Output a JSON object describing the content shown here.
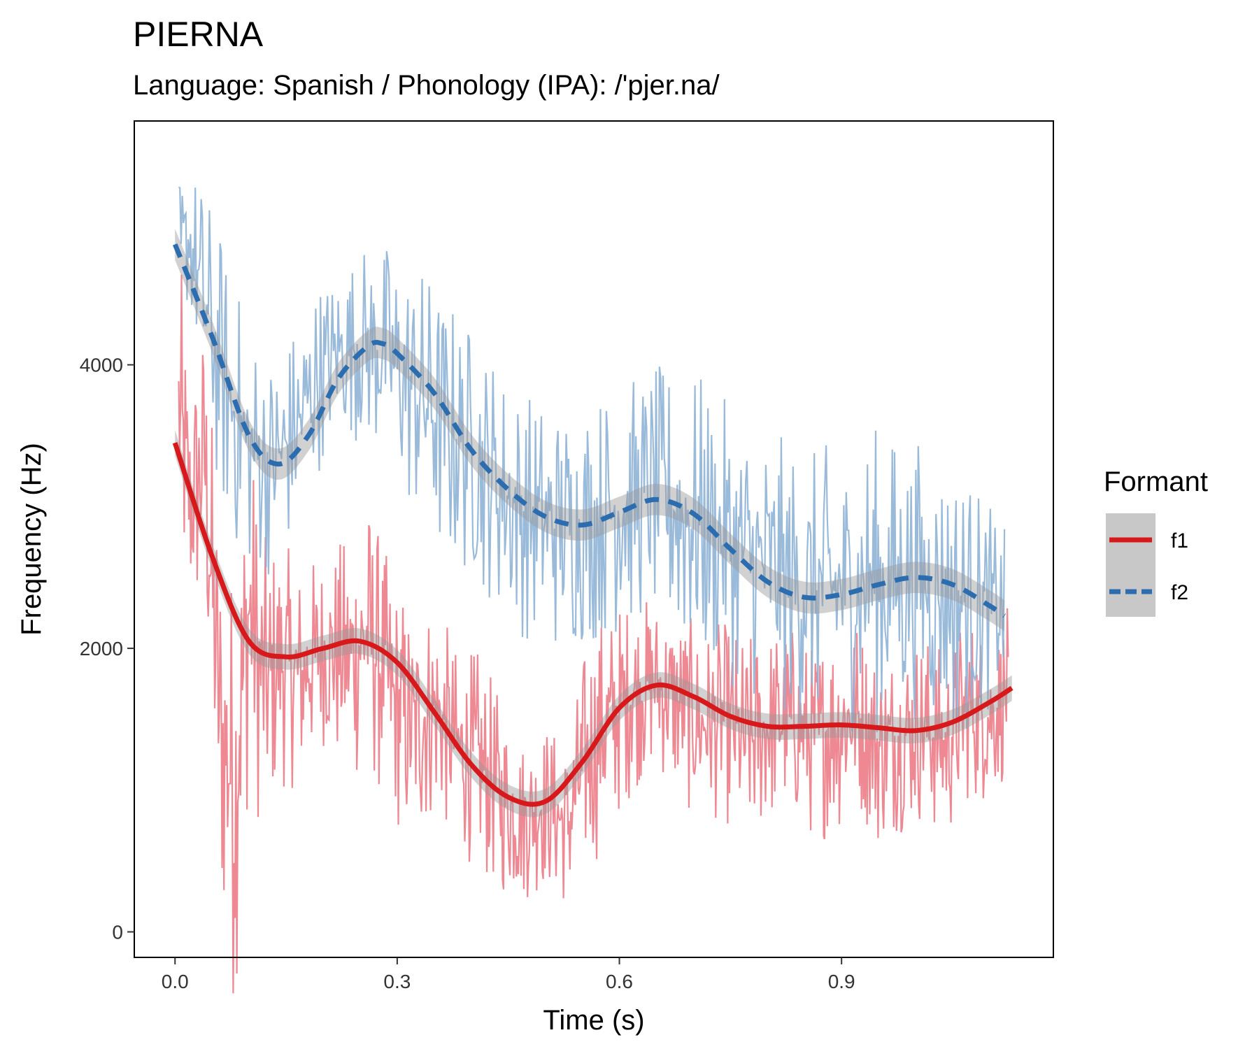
{
  "chart_data": {
    "type": "line",
    "title": "PIERNA",
    "subtitle": "Language: Spanish / Phonology (IPA): /'pjer.na/",
    "xlabel": "Time (s)",
    "ylabel": "Frequency (Hz)",
    "xlim": [
      -0.055,
      1.186
    ],
    "ylim": [
      -180,
      5720
    ],
    "x_ticks": [
      0.0,
      0.3,
      0.6,
      0.9
    ],
    "x_tick_labels": [
      "0.0",
      "0.3",
      "0.6",
      "0.9"
    ],
    "y_ticks": [
      0,
      2000,
      4000
    ],
    "y_tick_labels": [
      "0",
      "2000",
      "4000"
    ],
    "grid": false,
    "legend": {
      "title": "Formant",
      "position": "right"
    },
    "series": [
      {
        "name": "f1",
        "color": "#d7191c",
        "raw_color": "#ec7b86",
        "linestyle": "solid",
        "smooth": {
          "x": [
            0.0,
            0.05,
            0.1,
            0.15,
            0.2,
            0.25,
            0.3,
            0.35,
            0.4,
            0.45,
            0.5,
            0.55,
            0.6,
            0.65,
            0.7,
            0.75,
            0.8,
            0.85,
            0.9,
            0.95,
            1.0,
            1.05,
            1.1,
            1.13
          ],
          "y": [
            3450,
            2650,
            2050,
            1940,
            2000,
            2050,
            1900,
            1550,
            1180,
            950,
            920,
            1200,
            1580,
            1740,
            1660,
            1520,
            1450,
            1450,
            1460,
            1440,
            1420,
            1480,
            1620,
            1720
          ],
          "band": 90
        },
        "raw": {
          "x": [
            0.005,
            0.02,
            0.04,
            0.06,
            0.08,
            0.1,
            0.12,
            0.14,
            0.17,
            0.2,
            0.23,
            0.26,
            0.29,
            0.32,
            0.35,
            0.38,
            0.41,
            0.44,
            0.47,
            0.5,
            0.53,
            0.56,
            0.59,
            0.62,
            0.65,
            0.68,
            0.71,
            0.74,
            0.77,
            0.8,
            0.83,
            0.86,
            0.89,
            0.92,
            0.95,
            0.98,
            1.01,
            1.04,
            1.07,
            1.1,
            1.125
          ],
          "y": [
            3700,
            3000,
            3300,
            1500,
            1000,
            2300,
            1700,
            1900,
            1800,
            2000,
            1900,
            2100,
            1700,
            1400,
            1600,
            1300,
            1200,
            950,
            800,
            900,
            750,
            1300,
            1500,
            1700,
            1750,
            1600,
            1450,
            1500,
            1300,
            1450,
            1500,
            1350,
            1450,
            1550,
            1300,
            1400,
            1450,
            1300,
            1600,
            1500,
            1700
          ],
          "spread": [
            1200,
            900,
            1100,
            1400,
            1600,
            1300,
            1100,
            900,
            800,
            700,
            900,
            1000,
            900,
            900,
            800,
            700,
            800,
            700,
            600,
            600,
            600,
            900,
            800,
            700,
            600,
            700,
            700,
            700,
            800,
            700,
            700,
            700,
            800,
            700,
            700,
            700,
            700,
            700,
            700,
            600,
            600
          ]
        }
      },
      {
        "name": "f2",
        "color": "#2c6db0",
        "raw_color": "#8fb2d6",
        "linestyle": "dashed",
        "smooth": {
          "x": [
            0.0,
            0.05,
            0.1,
            0.14,
            0.18,
            0.22,
            0.26,
            0.28,
            0.3,
            0.35,
            0.4,
            0.45,
            0.5,
            0.55,
            0.6,
            0.65,
            0.7,
            0.75,
            0.8,
            0.85,
            0.9,
            0.95,
            1.0,
            1.05,
            1.1,
            1.12
          ],
          "y": [
            4850,
            4200,
            3500,
            3300,
            3500,
            3900,
            4130,
            4150,
            4080,
            3800,
            3400,
            3120,
            2930,
            2870,
            2960,
            3050,
            2950,
            2700,
            2470,
            2360,
            2380,
            2450,
            2500,
            2450,
            2300,
            2230
          ],
          "band": 110
        },
        "raw": {
          "x": [
            0.005,
            0.02,
            0.04,
            0.07,
            0.1,
            0.13,
            0.16,
            0.19,
            0.22,
            0.25,
            0.28,
            0.31,
            0.34,
            0.37,
            0.4,
            0.43,
            0.46,
            0.49,
            0.52,
            0.55,
            0.58,
            0.61,
            0.64,
            0.67,
            0.7,
            0.73,
            0.76,
            0.79,
            0.82,
            0.85,
            0.88,
            0.91,
            0.94,
            0.97,
            1.0,
            1.03,
            1.06,
            1.09,
            1.12
          ],
          "y": [
            4800,
            4900,
            4400,
            3800,
            3400,
            3300,
            3500,
            3900,
            4100,
            4150,
            4100,
            3900,
            3700,
            3500,
            3400,
            3200,
            3000,
            2900,
            2850,
            2900,
            2950,
            3000,
            3100,
            3000,
            2900,
            2800,
            2700,
            2600,
            2500,
            2400,
            2450,
            2400,
            2500,
            2450,
            2500,
            2400,
            2350,
            2300,
            2250
          ],
          "spread": [
            500,
            500,
            900,
            1000,
            900,
            800,
            800,
            700,
            600,
            700,
            800,
            900,
            1000,
            1000,
            900,
            900,
            900,
            900,
            900,
            900,
            900,
            900,
            900,
            1000,
            1100,
            1000,
            1000,
            1000,
            1000,
            1000,
            1000,
            1000,
            1100,
            1100,
            1000,
            1000,
            1000,
            800,
            600
          ]
        }
      }
    ]
  }
}
